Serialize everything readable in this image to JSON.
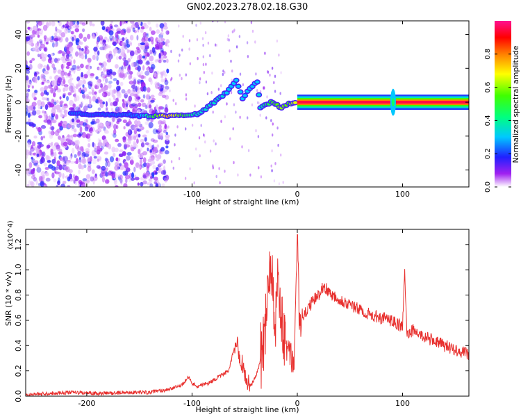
{
  "title": "GN02.2023.278.02.18.G30",
  "chart_data": [
    {
      "type": "heatmap",
      "title": "GN02.2023.278.02.18.G30",
      "xlabel": "Height of straight line (km)",
      "ylabel": "Frequency (Hz)",
      "xlim": [
        -258,
        163
      ],
      "ylim": [
        -50,
        48
      ],
      "xticks": [
        -200,
        -100,
        0,
        100
      ],
      "yticks": [
        -40,
        -20,
        0,
        20,
        40
      ],
      "colorbar": {
        "label": "Normalized spectral amplitude",
        "range": [
          0,
          1
        ],
        "ticks": [
          0.0,
          0.2,
          0.4,
          0.6,
          0.8
        ],
        "tick_labels": [
          "0.0",
          "0.2",
          "0.4",
          "0.6",
          "0.8"
        ]
      },
      "noise_region_x": [
        -258,
        -123
      ],
      "signal_track": [
        {
          "x": -215,
          "y": -7,
          "amp": 0.25
        },
        {
          "x": -200,
          "y": -7,
          "amp": 0.22
        },
        {
          "x": -180,
          "y": -7,
          "amp": 0.22
        },
        {
          "x": -150,
          "y": -8,
          "amp": 0.25
        },
        {
          "x": -123,
          "y": -8,
          "amp": 0.75
        },
        {
          "x": -110,
          "y": -8,
          "amp": 0.55
        },
        {
          "x": -95,
          "y": -7,
          "amp": 0.35
        },
        {
          "x": -85,
          "y": -3,
          "amp": 0.35
        },
        {
          "x": -75,
          "y": 2,
          "amp": 0.35
        },
        {
          "x": -65,
          "y": 7,
          "amp": 0.3
        },
        {
          "x": -58,
          "y": 13,
          "amp": 0.3
        },
        {
          "x": -52,
          "y": 2,
          "amp": 0.3
        },
        {
          "x": -45,
          "y": 8,
          "amp": 0.3
        },
        {
          "x": -38,
          "y": 12,
          "amp": 0.3
        },
        {
          "x": -35,
          "y": -3,
          "amp": 0.35
        },
        {
          "x": -25,
          "y": 0,
          "amp": 0.5
        },
        {
          "x": -15,
          "y": -3,
          "amp": 0.6
        },
        {
          "x": -8,
          "y": -1,
          "amp": 0.55
        },
        {
          "x": 0,
          "y": 0,
          "amp": 0.7
        },
        {
          "x": 50,
          "y": 0,
          "amp": 1.0
        },
        {
          "x": 100,
          "y": 0,
          "amp": 1.0
        },
        {
          "x": 163,
          "y": 0,
          "amp": 1.0
        }
      ],
      "spike": {
        "x": 91,
        "y_range": [
          -8,
          8
        ]
      }
    },
    {
      "type": "line",
      "xlabel": "Height of straight line (km)",
      "ylabel": "SNR (10 * v/v)",
      "y_multiplier": "(x10^4)",
      "xlim": [
        -258,
        163
      ],
      "ylim": [
        0,
        1.32
      ],
      "xticks": [
        -200,
        -100,
        0,
        100
      ],
      "yticks": [
        0.0,
        0.2,
        0.4,
        0.6,
        0.8,
        1.0,
        1.2
      ],
      "ytick_labels": [
        "0.0",
        "0.2",
        "0.4",
        "0.6",
        "0.8",
        "1.0",
        "1.2"
      ],
      "color": "#e8302e",
      "series": [
        {
          "x": [
            -258,
            -240,
            -215,
            -190,
            -160,
            -140,
            -125,
            -115,
            -108,
            -104,
            -100,
            -95,
            -85,
            -75,
            -65,
            -60,
            -57,
            -55,
            -52,
            -48,
            -44,
            -40,
            -36,
            -32,
            -30,
            -28,
            -25,
            -22,
            -20,
            -18,
            -15,
            -12,
            -8,
            -5,
            -3,
            -1,
            0,
            2,
            5,
            10,
            15,
            20,
            25,
            30,
            40,
            50,
            60,
            70,
            80,
            88,
            95,
            100,
            102,
            104,
            110,
            120,
            130,
            140,
            150,
            163
          ],
          "y": [
            0.01,
            0.02,
            0.03,
            0.02,
            0.03,
            0.03,
            0.05,
            0.07,
            0.1,
            0.16,
            0.1,
            0.08,
            0.1,
            0.15,
            0.2,
            0.38,
            0.45,
            0.33,
            0.25,
            0.12,
            0.08,
            0.15,
            0.25,
            0.45,
            0.62,
            0.9,
            1.1,
            0.75,
            0.6,
            1.0,
            0.55,
            0.4,
            0.35,
            0.28,
            0.25,
            0.95,
            1.32,
            0.55,
            0.6,
            0.7,
            0.75,
            0.8,
            0.88,
            0.82,
            0.77,
            0.72,
            0.68,
            0.64,
            0.62,
            0.6,
            0.57,
            0.55,
            0.97,
            0.5,
            0.52,
            0.47,
            0.44,
            0.4,
            0.37,
            0.33
          ]
        }
      ]
    }
  ]
}
